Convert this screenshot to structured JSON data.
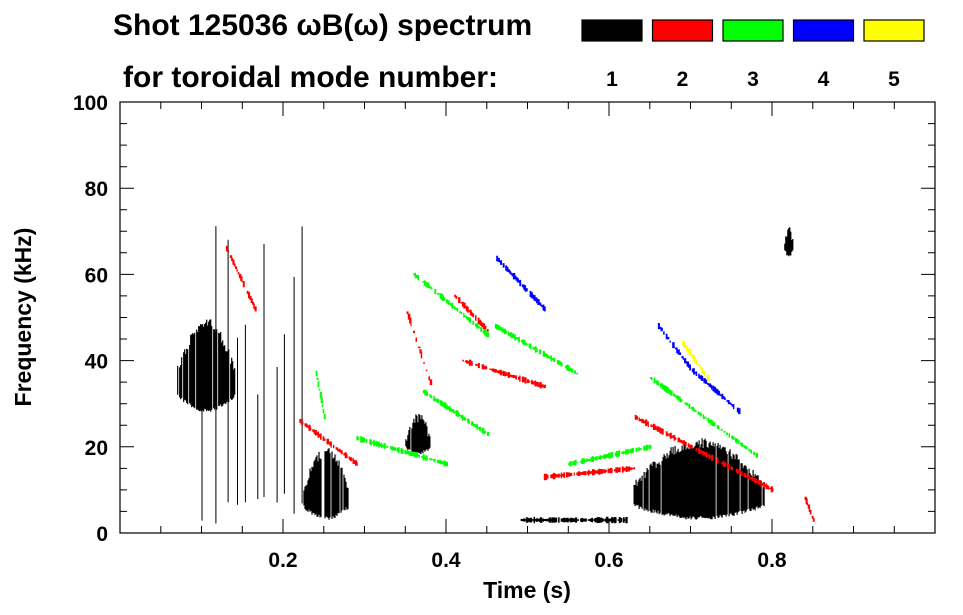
{
  "chart_data": {
    "type": "spectrogram",
    "title_line1": "Shot 125036 ωB(ω) spectrum",
    "title_line2": "for toroidal mode number:",
    "xlabel": "Time (s)",
    "ylabel": "Frequency (kHz)",
    "xlim": [
      0.0,
      1.0
    ],
    "ylim": [
      0,
      100
    ],
    "x_ticks": [
      0.2,
      0.4,
      0.6,
      0.8
    ],
    "x_tick_labels": [
      "0.2",
      "0.4",
      "0.6",
      "0.8"
    ],
    "y_ticks": [
      0,
      20,
      40,
      60,
      80,
      100
    ],
    "y_tick_labels": [
      "0",
      "20",
      "40",
      "60",
      "80",
      "100"
    ],
    "legend": [
      {
        "label": "1",
        "color": "#000000"
      },
      {
        "label": "2",
        "color": "#ff0000"
      },
      {
        "label": "3",
        "color": "#00ff00"
      },
      {
        "label": "4",
        "color": "#0000ff"
      },
      {
        "label": "5",
        "color": "#ffff00"
      }
    ],
    "features": [
      {
        "n": 1,
        "kind": "blob",
        "t": [
          0.07,
          0.14
        ],
        "f": [
          28,
          50
        ]
      },
      {
        "n": 1,
        "kind": "spikes",
        "t": [
          0.1,
          0.23
        ],
        "f": [
          2,
          76
        ]
      },
      {
        "n": 1,
        "kind": "blob",
        "t": [
          0.225,
          0.28
        ],
        "f": [
          3,
          20
        ]
      },
      {
        "n": 1,
        "kind": "blob",
        "t": [
          0.35,
          0.38
        ],
        "f": [
          18,
          28
        ]
      },
      {
        "n": 1,
        "kind": "blob",
        "t": [
          0.63,
          0.79
        ],
        "f": [
          3,
          22
        ]
      },
      {
        "n": 1,
        "kind": "blob",
        "t": [
          0.815,
          0.825
        ],
        "f": [
          64,
          72
        ]
      },
      {
        "n": 1,
        "kind": "line",
        "t": [
          0.49,
          0.62
        ],
        "f": [
          3,
          3
        ]
      },
      {
        "n": 2,
        "kind": "line",
        "t": [
          0.35,
          0.38
        ],
        "f": [
          52,
          35
        ]
      },
      {
        "n": 2,
        "kind": "line",
        "t": [
          0.41,
          0.45
        ],
        "f": [
          55,
          47
        ]
      },
      {
        "n": 2,
        "kind": "line",
        "t": [
          0.22,
          0.29
        ],
        "f": [
          26,
          16
        ]
      },
      {
        "n": 2,
        "kind": "line",
        "t": [
          0.42,
          0.52
        ],
        "f": [
          40,
          34
        ]
      },
      {
        "n": 2,
        "kind": "line",
        "t": [
          0.63,
          0.8
        ],
        "f": [
          27,
          10
        ]
      },
      {
        "n": 2,
        "kind": "line",
        "t": [
          0.13,
          0.165
        ],
        "f": [
          66,
          52
        ]
      },
      {
        "n": 2,
        "kind": "line",
        "t": [
          0.52,
          0.63
        ],
        "f": [
          13,
          15
        ]
      },
      {
        "n": 2,
        "kind": "line",
        "t": [
          0.84,
          0.85
        ],
        "f": [
          8,
          3
        ]
      },
      {
        "n": 3,
        "kind": "line",
        "t": [
          0.36,
          0.45
        ],
        "f": [
          60,
          46
        ]
      },
      {
        "n": 3,
        "kind": "line",
        "t": [
          0.46,
          0.56
        ],
        "f": [
          48,
          37
        ]
      },
      {
        "n": 3,
        "kind": "line",
        "t": [
          0.37,
          0.45
        ],
        "f": [
          33,
          23
        ]
      },
      {
        "n": 3,
        "kind": "line",
        "t": [
          0.29,
          0.4
        ],
        "f": [
          22,
          16
        ]
      },
      {
        "n": 3,
        "kind": "line",
        "t": [
          0.55,
          0.65
        ],
        "f": [
          16,
          20
        ]
      },
      {
        "n": 3,
        "kind": "line",
        "t": [
          0.65,
          0.78
        ],
        "f": [
          36,
          18
        ]
      },
      {
        "n": 3,
        "kind": "line",
        "t": [
          0.24,
          0.25
        ],
        "f": [
          37,
          27
        ]
      },
      {
        "n": 4,
        "kind": "line",
        "t": [
          0.46,
          0.52
        ],
        "f": [
          64,
          52
        ]
      },
      {
        "n": 4,
        "kind": "line",
        "t": [
          0.66,
          0.7
        ],
        "f": [
          48,
          38
        ]
      },
      {
        "n": 4,
        "kind": "line",
        "t": [
          0.7,
          0.76
        ],
        "f": [
          38,
          28
        ]
      },
      {
        "n": 5,
        "kind": "line",
        "t": [
          0.69,
          0.72
        ],
        "f": [
          44,
          36
        ]
      }
    ]
  }
}
